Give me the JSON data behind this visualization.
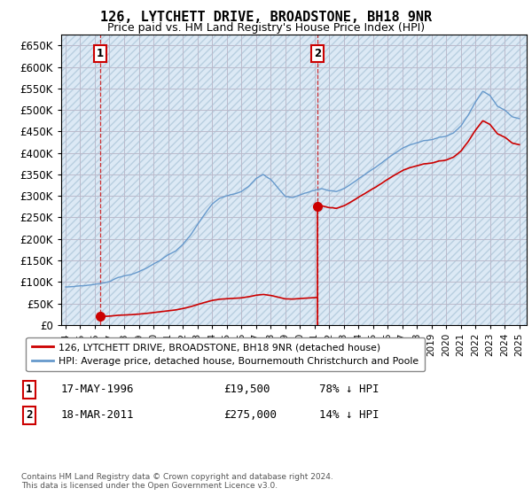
{
  "title": "126, LYTCHETT DRIVE, BROADSTONE, BH18 9NR",
  "subtitle": "Price paid vs. HM Land Registry's House Price Index (HPI)",
  "ylabel_ticks": [
    0,
    50000,
    100000,
    150000,
    200000,
    250000,
    300000,
    350000,
    400000,
    450000,
    500000,
    550000,
    600000,
    650000
  ],
  "ylim": [
    0,
    675000
  ],
  "xlim_start": 1993.7,
  "xlim_end": 2025.5,
  "sale1_x": 1996.37,
  "sale1_y": 19500,
  "sale1_label": "1",
  "sale2_x": 2011.21,
  "sale2_y": 275000,
  "sale2_label": "2",
  "red_line_color": "#cc0000",
  "blue_line_color": "#6699cc",
  "annotation_box_color": "#cc0000",
  "legend_red_label": "126, LYTCHETT DRIVE, BROADSTONE, BH18 9NR (detached house)",
  "legend_blue_label": "HPI: Average price, detached house, Bournemouth Christchurch and Poole",
  "table_row1": [
    "1",
    "17-MAY-1996",
    "£19,500",
    "78% ↓ HPI"
  ],
  "table_row2": [
    "2",
    "18-MAR-2011",
    "£275,000",
    "14% ↓ HPI"
  ],
  "footnote": "Contains HM Land Registry data © Crown copyright and database right 2024.\nThis data is licensed under the Open Government Licence v3.0.",
  "bg_color": "#ffffff",
  "chart_bg_color": "#dce9f5",
  "hatch_bg_color": "#dce9f5",
  "grid_color": "#aaaacc"
}
